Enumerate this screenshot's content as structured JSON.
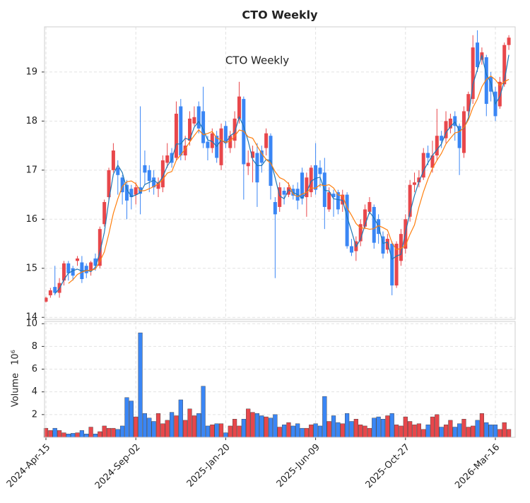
{
  "chart_data": {
    "type": "candlestick",
    "title": "CTO  Weekly",
    "inner_title": "CTO  Weekly",
    "x": [
      "2024-Apr-15",
      "2024-Apr-22",
      "2024-Apr-29",
      "2024-May-06",
      "2024-May-13",
      "2024-May-20",
      "2024-May-27",
      "2024-Jun-03",
      "2024-Jun-10",
      "2024-Jun-17",
      "2024-Jun-24",
      "2024-Jul-01",
      "2024-Jul-08",
      "2024-Jul-15",
      "2024-Jul-22",
      "2024-Jul-29",
      "2024-Aug-05",
      "2024-Aug-12",
      "2024-Aug-19",
      "2024-Aug-26",
      "2024-Sep-02",
      "2024-Sep-09",
      "2024-Sep-16",
      "2024-Sep-23",
      "2024-Sep-30",
      "2024-Oct-07",
      "2024-Oct-14",
      "2024-Oct-21",
      "2024-Oct-28",
      "2024-Nov-04",
      "2024-Nov-11",
      "2024-Nov-18",
      "2024-Nov-25",
      "2024-Dec-02",
      "2024-Dec-09",
      "2024-Dec-16",
      "2024-Dec-23",
      "2024-Dec-30",
      "2025-Jan-06",
      "2025-Jan-13",
      "2025-Jan-20",
      "2025-Jan-27",
      "2025-Feb-03",
      "2025-Feb-10",
      "2025-Feb-17",
      "2025-Feb-24",
      "2025-Mar-03",
      "2025-Mar-10",
      "2025-Mar-17",
      "2025-Mar-24",
      "2025-Mar-31",
      "2025-Apr-07",
      "2025-Apr-14",
      "2025-Apr-21",
      "2025-Apr-28",
      "2025-May-05",
      "2025-May-12",
      "2025-May-19",
      "2025-May-26",
      "2025-Jun-02",
      "2025-Jun-09",
      "2025-Jun-16",
      "2025-Jun-23",
      "2025-Jun-30",
      "2025-Jul-07",
      "2025-Jul-14",
      "2025-Jul-21",
      "2025-Jul-28",
      "2025-Aug-04",
      "2025-Aug-11",
      "2025-Aug-18",
      "2025-Aug-25",
      "2025-Sep-01",
      "2025-Sep-08",
      "2025-Sep-15",
      "2025-Sep-22",
      "2025-Sep-29",
      "2025-Oct-06",
      "2025-Oct-13",
      "2025-Oct-20",
      "2025-Oct-27",
      "2025-Nov-03",
      "2025-Nov-10",
      "2025-Nov-17",
      "2025-Nov-24",
      "2025-Dec-01",
      "2025-Dec-08",
      "2025-Dec-15",
      "2025-Dec-22",
      "2025-Dec-29",
      "2026-Jan-05",
      "2026-Jan-12",
      "2026-Jan-19",
      "2026-Jan-26",
      "2026-Feb-02",
      "2026-Feb-09",
      "2026-Feb-16",
      "2026-Feb-23",
      "2026-Mar-02",
      "2026-Mar-09",
      "2026-Mar-16",
      "2026-Mar-23",
      "2026-Mar-30",
      "2026-Apr-06"
    ],
    "xtick_indices": [
      0,
      20,
      40,
      60,
      80,
      100
    ],
    "open": [
      14.32,
      14.45,
      14.62,
      14.5,
      14.75,
      15.1,
      15.0,
      15.15,
      15.12,
      15.05,
      14.95,
      15.2,
      15.05,
      15.9,
      16.45,
      17.0,
      17.05,
      16.85,
      16.7,
      16.62,
      16.5,
      16.65,
      17.1,
      17.0,
      16.85,
      16.62,
      16.65,
      17.15,
      17.35,
      17.25,
      18.3,
      17.3,
      17.6,
      17.95,
      18.3,
      18.2,
      17.58,
      17.45,
      17.7,
      17.1,
      17.9,
      17.45,
      17.6,
      18.05,
      18.45,
      17.08,
      17.25,
      17.35,
      17.4,
      17.45,
      17.7,
      16.35,
      16.25,
      16.58,
      16.5,
      16.62,
      16.62,
      16.95,
      16.45,
      16.55,
      17.1,
      17.05,
      16.95,
      16.2,
      16.52,
      16.55,
      16.3,
      16.5,
      15.45,
      15.35,
      15.55,
      15.85,
      16.15,
      16.25,
      16.0,
      15.65,
      15.38,
      15.5,
      14.65,
      15.15,
      15.4,
      16.05,
      16.7,
      16.75,
      16.85,
      17.35,
      17.05,
      17.3,
      17.7,
      17.65,
      17.85,
      18.1,
      17.9,
      17.35,
      18.2,
      18.45,
      19.6,
      19.25,
      19.3,
      18.9,
      18.6,
      18.3,
      18.75,
      19.55
    ],
    "high": [
      14.42,
      14.6,
      15.05,
      14.8,
      15.15,
      15.15,
      15.05,
      15.25,
      15.25,
      15.1,
      15.15,
      15.3,
      15.85,
      16.4,
      17.05,
      17.55,
      17.2,
      16.9,
      16.8,
      16.7,
      16.75,
      18.3,
      17.4,
      17.1,
      17.0,
      16.85,
      17.3,
      17.55,
      17.45,
      18.4,
      18.45,
      17.7,
      18.2,
      18.3,
      18.4,
      18.7,
      17.7,
      17.85,
      17.8,
      17.95,
      18.0,
      17.8,
      18.2,
      18.8,
      18.5,
      17.4,
      17.5,
      17.55,
      17.5,
      17.85,
      17.75,
      16.45,
      16.75,
      16.65,
      16.75,
      16.7,
      16.75,
      17.05,
      16.95,
      17.1,
      17.55,
      17.2,
      17.25,
      16.65,
      16.6,
      16.6,
      16.6,
      16.55,
      15.6,
      15.65,
      16.0,
      16.3,
      16.45,
      16.3,
      16.1,
      15.75,
      15.7,
      15.55,
      15.55,
      15.8,
      16.1,
      16.8,
      16.95,
      17.0,
      17.45,
      17.5,
      17.6,
      18.25,
      17.8,
      18.2,
      18.15,
      18.2,
      17.95,
      18.3,
      18.6,
      19.75,
      19.85,
      19.5,
      19.35,
      19.0,
      18.7,
      18.9,
      19.6,
      19.75
    ],
    "low": [
      14.3,
      14.4,
      14.45,
      14.4,
      14.65,
      14.75,
      14.75,
      15.05,
      14.7,
      14.8,
      14.85,
      14.95,
      15.0,
      15.85,
      16.4,
      16.95,
      16.5,
      16.3,
      16.0,
      16.2,
      16.3,
      16.1,
      16.7,
      16.55,
      16.5,
      16.45,
      16.55,
      17.05,
      17.05,
      17.2,
      17.2,
      17.2,
      17.5,
      17.9,
      17.75,
      17.45,
      17.2,
      17.35,
      17.15,
      17.0,
      17.45,
      17.35,
      17.45,
      17.95,
      16.4,
      16.9,
      16.75,
      16.25,
      16.95,
      17.3,
      16.4,
      14.8,
      16.15,
      16.3,
      16.45,
      16.4,
      16.2,
      16.3,
      16.05,
      16.45,
      16.5,
      16.65,
      15.8,
      16.15,
      16.05,
      16.1,
      16.15,
      15.4,
      15.25,
      15.15,
      15.45,
      15.8,
      16.1,
      15.4,
      15.5,
      15.2,
      15.3,
      14.45,
      14.6,
      15.05,
      15.3,
      15.95,
      16.55,
      16.65,
      16.8,
      17.1,
      16.95,
      17.2,
      17.45,
      17.55,
      17.75,
      17.6,
      16.9,
      17.25,
      18.1,
      18.35,
      19.0,
      19.15,
      18.1,
      18.4,
      18.0,
      18.25,
      18.7,
      19.45
    ],
    "close": [
      14.4,
      14.55,
      14.5,
      14.7,
      15.1,
      14.9,
      14.85,
      15.2,
      14.78,
      14.9,
      15.12,
      15.05,
      15.8,
      16.35,
      17.0,
      17.4,
      16.9,
      16.55,
      16.38,
      16.45,
      16.65,
      16.52,
      16.95,
      16.78,
      16.65,
      16.75,
      17.2,
      17.3,
      17.15,
      18.15,
      17.3,
      17.5,
      18.05,
      18.08,
      17.85,
      17.55,
      17.45,
      17.75,
      17.25,
      17.85,
      17.55,
      17.7,
      18.05,
      18.5,
      17.12,
      17.15,
      17.38,
      16.75,
      17.15,
      17.75,
      16.68,
      16.1,
      16.65,
      16.5,
      16.65,
      16.48,
      16.38,
      16.42,
      16.85,
      17.05,
      16.6,
      16.92,
      16.25,
      16.55,
      16.45,
      16.2,
      16.5,
      15.45,
      15.32,
      15.55,
      15.9,
      16.2,
      16.35,
      15.52,
      15.7,
      15.3,
      15.6,
      14.65,
      15.5,
      15.7,
      16.0,
      16.7,
      16.75,
      16.85,
      17.35,
      17.25,
      17.3,
      17.7,
      17.6,
      18.0,
      18.05,
      17.9,
      17.45,
      18.2,
      18.55,
      19.5,
      19.1,
      19.4,
      18.35,
      18.6,
      18.1,
      18.8,
      19.55,
      19.7
    ],
    "volume": [
      0.8,
      0.6,
      0.8,
      0.6,
      0.4,
      0.3,
      0.35,
      0.4,
      0.6,
      0.3,
      0.9,
      0.3,
      0.5,
      1.0,
      0.8,
      0.8,
      0.7,
      1.0,
      3.5,
      3.2,
      1.8,
      9.2,
      2.1,
      1.7,
      1.4,
      2.1,
      1.2,
      1.5,
      2.2,
      1.9,
      3.3,
      1.5,
      2.5,
      1.9,
      2.1,
      4.5,
      1.0,
      1.1,
      1.2,
      1.2,
      0.4,
      1.0,
      1.6,
      1.0,
      1.6,
      2.5,
      2.2,
      2.1,
      1.9,
      1.8,
      1.7,
      2.0,
      0.9,
      1.1,
      1.3,
      1.0,
      1.2,
      0.8,
      0.8,
      1.1,
      1.2,
      1.0,
      3.6,
      1.4,
      1.9,
      1.3,
      1.2,
      2.1,
      1.4,
      1.6,
      1.1,
      1.0,
      0.8,
      1.7,
      1.8,
      1.6,
      1.9,
      2.1,
      1.1,
      1.0,
      1.8,
      1.4,
      1.1,
      1.2,
      0.7,
      1.1,
      1.8,
      2.0,
      0.9,
      1.1,
      1.5,
      0.9,
      1.2,
      1.6,
      0.9,
      1.0,
      1.5,
      2.1,
      1.3,
      1.1,
      1.1,
      0.7,
      1.3,
      0.7
    ],
    "up_color": "#e8474b",
    "down_color": "#3a86f5",
    "mav": [
      {
        "window": 3,
        "color": "#1f77b4"
      },
      {
        "window": 6,
        "color": "#ff7f0e"
      }
    ],
    "ylim": [
      13.96,
      19.92
    ],
    "yticks": [
      14,
      15,
      16,
      17,
      18,
      19
    ],
    "volume_ylim": [
      0,
      10.2
    ],
    "volume_yticks": [
      2,
      4,
      6,
      8,
      10
    ],
    "volume_ylabel": "Volume",
    "volume_offset_label": "10⁶",
    "grid": true
  }
}
